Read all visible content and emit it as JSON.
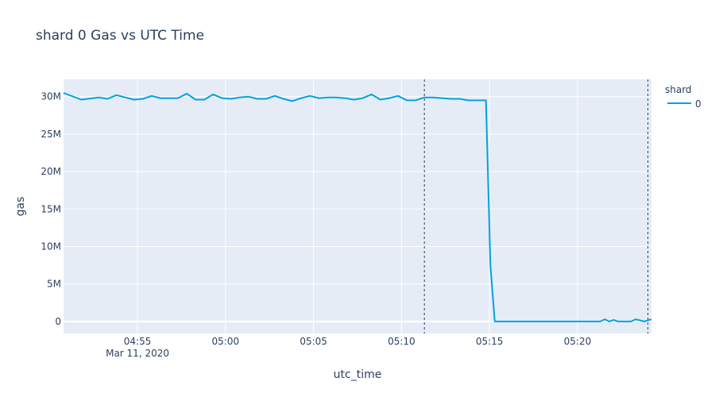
{
  "chart_data": {
    "type": "line",
    "title": "shard 0 Gas vs UTC Time",
    "xlabel": "utc_time",
    "ylabel": "gas",
    "date": "Mar 11, 2020",
    "x_ticks": [
      "04:55",
      "05:00",
      "05:05",
      "05:10",
      "05:15",
      "05:20"
    ],
    "y_ticks": [
      "0",
      "5M",
      "10M",
      "15M",
      "20M",
      "25M",
      "30M"
    ],
    "xlim": [
      "04:50:48",
      "05:24:12"
    ],
    "ylim": [
      -1600000,
      32300000
    ],
    "legend": {
      "title": "shard",
      "placement": "top-right outside plot"
    },
    "vlines": [
      "05:11:18",
      "05:24:00"
    ],
    "grid": true,
    "colors": {
      "plot_bg": "#e5ecf6",
      "grid": "#ffffff",
      "line": "#00a3e0",
      "vline": "#2a3f5f"
    },
    "series": [
      {
        "name": "0",
        "x": [
          "04:50:48",
          "04:51:48",
          "04:52:48",
          "04:53:18",
          "04:53:48",
          "04:54:18",
          "04:54:48",
          "04:55:18",
          "04:55:48",
          "04:56:18",
          "04:56:48",
          "04:57:18",
          "04:57:48",
          "04:58:18",
          "04:58:48",
          "04:59:18",
          "04:59:48",
          "05:00:18",
          "05:00:48",
          "05:01:18",
          "05:01:48",
          "05:02:18",
          "05:02:48",
          "05:03:18",
          "05:03:48",
          "05:04:18",
          "05:04:48",
          "05:05:18",
          "05:05:48",
          "05:06:18",
          "05:06:48",
          "05:07:18",
          "05:07:48",
          "05:08:18",
          "05:08:48",
          "05:09:18",
          "05:09:48",
          "05:10:18",
          "05:10:48",
          "05:11:18",
          "05:11:48",
          "05:12:18",
          "05:12:48",
          "05:13:18",
          "05:13:48",
          "05:14:18",
          "05:14:48",
          "05:15:03",
          "05:15:18",
          "05:16:18",
          "05:17:18",
          "05:18:18",
          "05:19:18",
          "05:20:18",
          "05:21:18",
          "05:21:33",
          "05:21:48",
          "05:22:03",
          "05:22:18",
          "05:22:48",
          "05:23:03",
          "05:23:18",
          "05:23:48",
          "05:24:12"
        ],
        "y": [
          30500000,
          29600000,
          29900000,
          29700000,
          30200000,
          29900000,
          29600000,
          29700000,
          30100000,
          29800000,
          29800000,
          29800000,
          30400000,
          29600000,
          29600000,
          30300000,
          29800000,
          29700000,
          29900000,
          30000000,
          29700000,
          29700000,
          30100000,
          29700000,
          29400000,
          29800000,
          30100000,
          29800000,
          29900000,
          29900000,
          29800000,
          29600000,
          29800000,
          30300000,
          29600000,
          29800000,
          30100000,
          29500000,
          29500000,
          29900000,
          29900000,
          29800000,
          29700000,
          29700000,
          29500000,
          29500000,
          29500000,
          7500000,
          0,
          0,
          0,
          0,
          0,
          0,
          0,
          300000,
          0,
          200000,
          0,
          0,
          0,
          300000,
          0,
          300000
        ]
      }
    ]
  }
}
